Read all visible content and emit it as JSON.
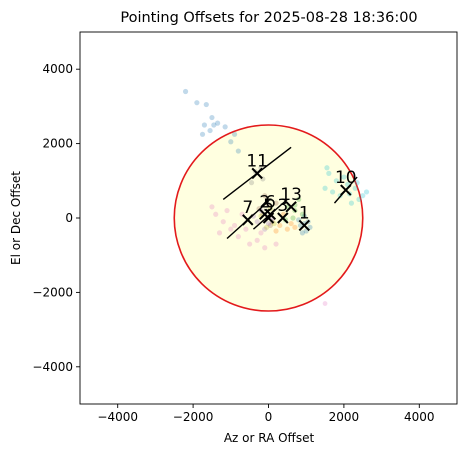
{
  "chart_data": {
    "type": "scatter",
    "title": "Pointing Offsets for 2025-08-28 18:36:00",
    "xlabel": "Az or RA Offset",
    "ylabel": "El or Dec Offset",
    "xlim": [
      -5000,
      5000
    ],
    "ylim": [
      -5000,
      5000
    ],
    "xticks": [
      -4000,
      -2000,
      0,
      2000,
      4000
    ],
    "yticks": [
      -4000,
      -2000,
      0,
      2000,
      4000
    ],
    "xtick_labels": [
      "−4000",
      "−2000",
      "0",
      "2000",
      "4000"
    ],
    "ytick_labels": [
      "−4000",
      "−2000",
      "0",
      "2000",
      "4000"
    ],
    "grid": false,
    "circle": {
      "center": [
        0,
        0
      ],
      "radius": 2500,
      "edge_color": "#e31a1c",
      "fill_color": "#ffffe0"
    },
    "series": [
      {
        "color": "#1f77b4",
        "points": [
          [
            -2200,
            3400
          ],
          [
            -1900,
            3100
          ],
          [
            -1650,
            3050
          ],
          [
            -1500,
            2700
          ],
          [
            -1700,
            2500
          ],
          [
            -1450,
            2500
          ],
          [
            -1350,
            2550
          ],
          [
            -1550,
            2350
          ],
          [
            -1750,
            2250
          ],
          [
            -1150,
            2450
          ],
          [
            -900,
            2250
          ],
          [
            -1000,
            2050
          ],
          [
            -800,
            1800
          ]
        ]
      },
      {
        "color": "#1f77b4",
        "points": [
          [
            950,
            -150
          ],
          [
            1000,
            -350
          ],
          [
            850,
            -200
          ],
          [
            1050,
            -100
          ],
          [
            900,
            -400
          ],
          [
            1100,
            -250
          ],
          [
            800,
            -50
          ],
          [
            950,
            50
          ]
        ],
        "label": "1",
        "marker": [
          950,
          -200
        ]
      },
      {
        "color": "#8c564b",
        "points": [
          [
            -150,
            100
          ],
          [
            0,
            350
          ],
          [
            100,
            -100
          ],
          [
            -250,
            250
          ],
          [
            200,
            400
          ],
          [
            50,
            -200
          ],
          [
            -100,
            600
          ]
        ],
        "label": "6",
        "marker": [
          50,
          100
        ]
      },
      {
        "color": "#17becf",
        "points": [
          [
            1600,
            1200
          ],
          [
            1800,
            1000
          ],
          [
            2100,
            900
          ],
          [
            2300,
            800
          ],
          [
            2500,
            600
          ],
          [
            1500,
            800
          ],
          [
            2200,
            400
          ],
          [
            2400,
            500
          ],
          [
            2000,
            1100
          ],
          [
            1900,
            600
          ],
          [
            2600,
            700
          ],
          [
            1700,
            700
          ],
          [
            2150,
            650
          ],
          [
            2350,
            950
          ],
          [
            1550,
            1350
          ]
        ],
        "label": "10",
        "marker": [
          2050,
          750
        ]
      },
      {
        "color": "#e377c2",
        "points": [
          [
            -1400,
            100
          ],
          [
            -1200,
            -100
          ],
          [
            -1000,
            -300
          ],
          [
            -800,
            -500
          ],
          [
            -900,
            -200
          ],
          [
            -500,
            -700
          ],
          [
            -300,
            -600
          ],
          [
            -1500,
            300
          ],
          [
            -100,
            -800
          ],
          [
            -1300,
            -400
          ],
          [
            -600,
            -300
          ],
          [
            -200,
            -400
          ],
          [
            200,
            -700
          ],
          [
            -700,
            100
          ],
          [
            -1100,
            200
          ]
        ],
        "label": "7",
        "marker": [
          -550,
          -50
        ]
      },
      {
        "color": "#2ca02c",
        "points": [
          [
            500,
            300
          ],
          [
            700,
            200
          ],
          [
            650,
            0
          ],
          [
            800,
            500
          ],
          [
            900,
            100
          ],
          [
            450,
            -50
          ],
          [
            700,
            350
          ]
        ],
        "label": "13",
        "marker": [
          600,
          300
        ]
      },
      {
        "color": "#ff7f0e",
        "points": [
          [
            300,
            -200
          ],
          [
            500,
            -300
          ],
          [
            600,
            -150
          ],
          [
            400,
            100
          ],
          [
            200,
            -350
          ],
          [
            700,
            -250
          ]
        ],
        "label": "3",
        "marker": [
          380,
          0
        ]
      },
      {
        "color": "#9467bd",
        "points": [
          [
            -300,
            -100
          ],
          [
            -100,
            -300
          ],
          [
            0,
            -150
          ],
          [
            -200,
            200
          ],
          [
            100,
            0
          ],
          [
            -400,
            50
          ]
        ],
        "label": "2",
        "marker": [
          -100,
          100
        ]
      },
      {
        "color": "#bcbd22",
        "points": [
          [
            -200,
            50
          ],
          [
            50,
            250
          ],
          [
            150,
            -150
          ],
          [
            -50,
            -250
          ]
        ],
        "label": "5",
        "marker": [
          0,
          0
        ]
      },
      {
        "color": "#7f7f7f",
        "points": [
          [
            -350,
            1250
          ],
          [
            -150,
            1050
          ],
          [
            -450,
            950
          ],
          [
            -200,
            1350
          ]
        ],
        "label": "11",
        "marker": [
          -300,
          1200
        ]
      }
    ],
    "outliers": [
      [
        1500,
        -2300
      ]
    ]
  }
}
